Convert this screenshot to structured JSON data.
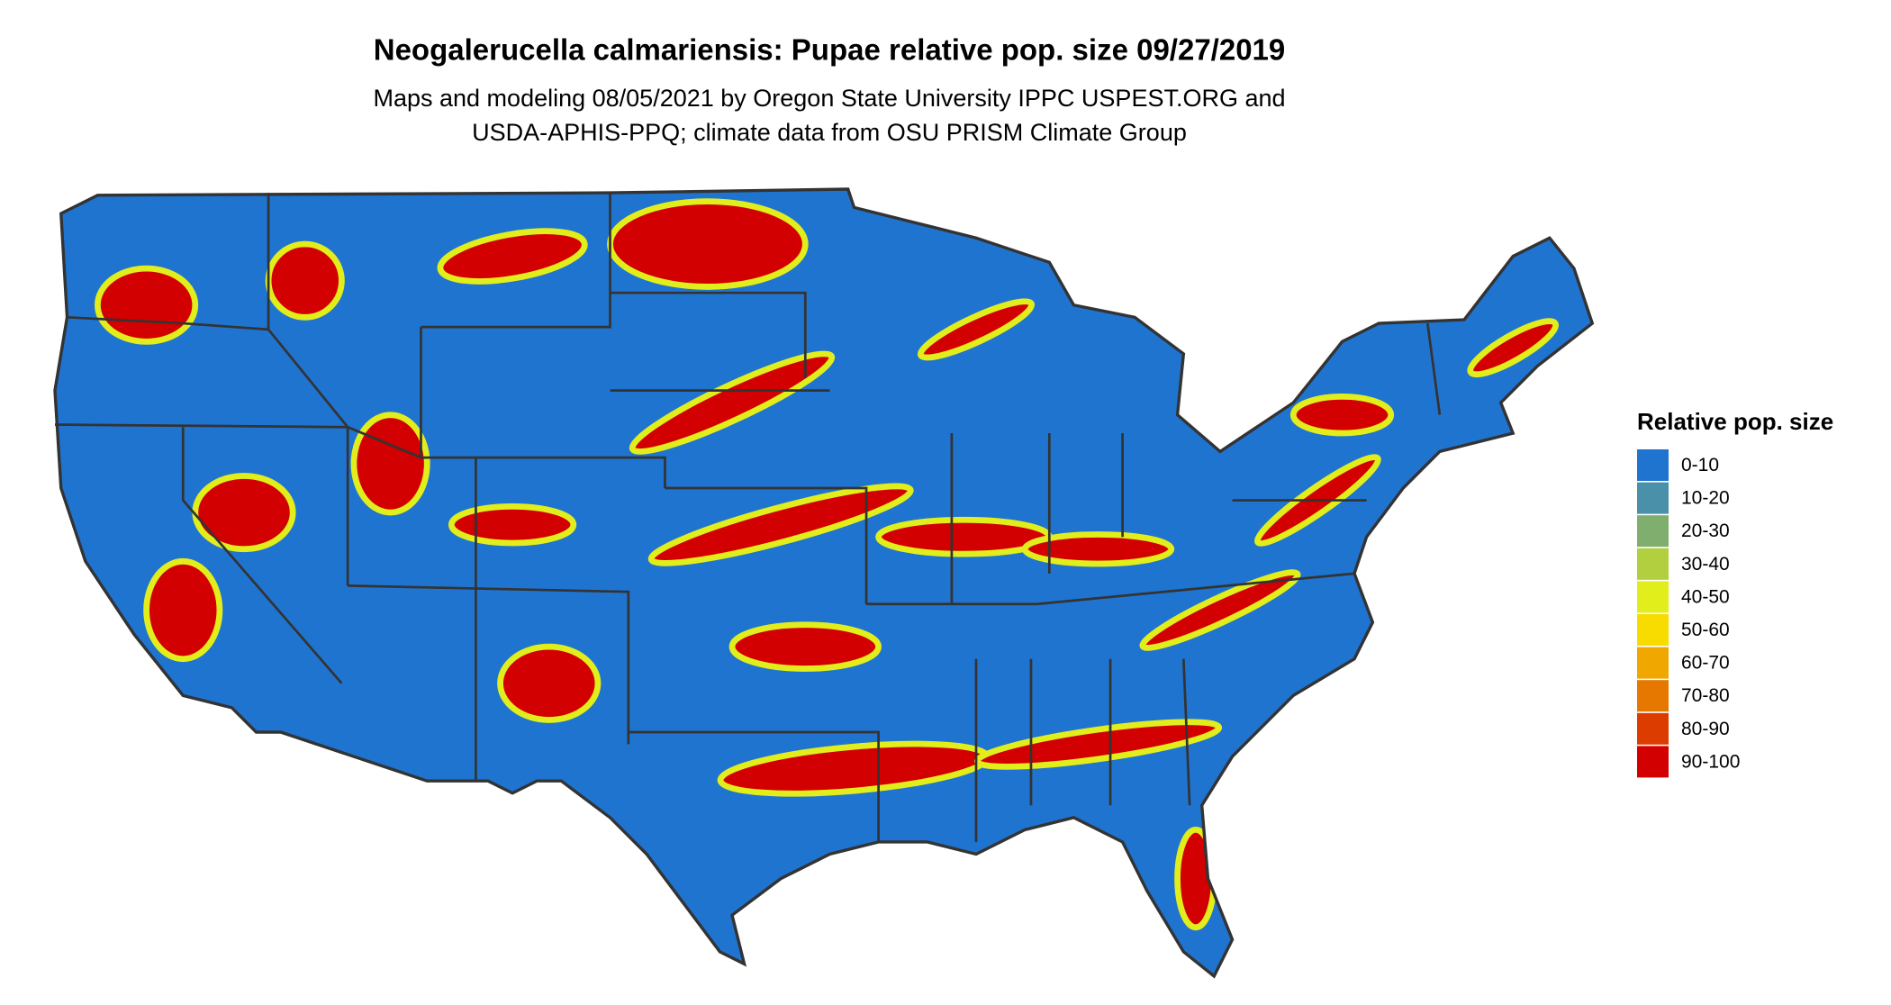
{
  "header": {
    "title": "Neogalerucella calmariensis: Pupae relative pop. size 09/27/2019",
    "subtitle": [
      "Maps and modeling 08/05/2021 by Oregon State University IPPC USPEST.ORG and",
      "USDA-APHIS-PPQ; climate data from OSU PRISM Climate Group"
    ]
  },
  "legend": {
    "title": "Relative pop. size",
    "items": [
      {
        "label": "0-10",
        "color": "#1f74d0"
      },
      {
        "label": "10-20",
        "color": "#4a90a8"
      },
      {
        "label": "20-30",
        "color": "#7fae6f"
      },
      {
        "label": "30-40",
        "color": "#b1cf3f"
      },
      {
        "label": "40-50",
        "color": "#e2ee1b"
      },
      {
        "label": "50-60",
        "color": "#f8dc00"
      },
      {
        "label": "60-70",
        "color": "#f0a800"
      },
      {
        "label": "70-80",
        "color": "#e67800"
      },
      {
        "label": "80-90",
        "color": "#dc3c00"
      },
      {
        "label": "90-100",
        "color": "#d20000"
      }
    ]
  }
}
